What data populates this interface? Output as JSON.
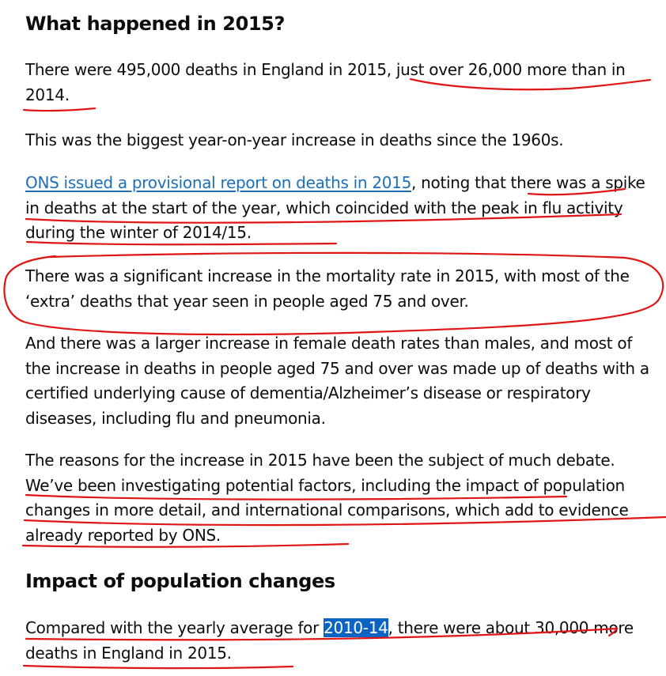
{
  "section1": {
    "heading": "What happened in 2015?",
    "p1": "There were 495,000 deaths in England in 2015, just over 26,000 more than in 2014.",
    "p2": "This was the biggest year-on-year increase in deaths since the 1960s.",
    "p3_link": "ONS issued a provisional report on deaths in 2015",
    "p3_rest": ", noting that there was a spike in deaths at the start of the year, which coincided with the peak in flu activity during the winter of 2014/15.",
    "p4": "There was a significant increase in the mortality rate in 2015, with most of the ‘extra’ deaths that year seen in people aged 75 and over.",
    "p5": "And there was a larger increase in female death rates than males, and most of the increase in deaths in people aged 75 and over was made up of deaths with a certified underlying cause of dementia/Alzheimer’s disease or respiratory diseases, including flu and pneumonia.",
    "p6": "The reasons for the increase in 2015 have been the subject of much debate. We’ve been investigating potential factors, including the impact of population changes in more detail, and international comparisons, which add to evidence already reported by ONS."
  },
  "section2": {
    "heading": "Impact of population changes",
    "p1_before": "Compared with the yearly average for ",
    "p1_selected": "2010-14",
    "p1_after": ", there were about 30,000 more deaths in England in 2015."
  },
  "colors": {
    "text": "#0b0c0c",
    "link": "#1d70b8",
    "annotation": "#e01616",
    "selection": "#0b63c4"
  }
}
